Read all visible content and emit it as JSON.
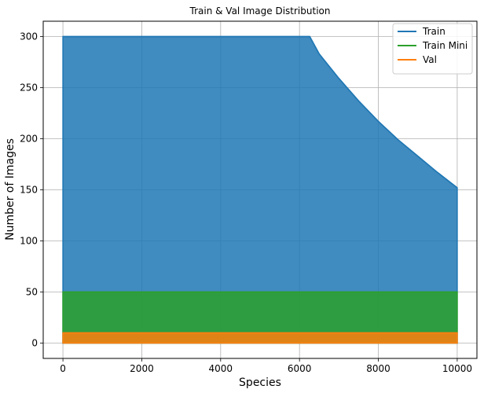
{
  "chart_data": {
    "type": "area",
    "title": "Train & Val Image Distribution",
    "xlabel": "Species",
    "ylabel": "Number of Images",
    "xlim": [
      -500,
      10500
    ],
    "ylim": [
      -15,
      315
    ],
    "xticks": [
      0,
      2000,
      4000,
      6000,
      8000,
      10000
    ],
    "yticks": [
      0,
      50,
      100,
      150,
      200,
      250,
      300
    ],
    "grid": true,
    "legend_position": "top-right",
    "series": [
      {
        "name": "Train",
        "color": "#1f77b4",
        "x": [
          0,
          6200,
          6260,
          6500,
          7000,
          7500,
          8000,
          8500,
          9000,
          9500,
          10000
        ],
        "y": [
          300,
          300,
          300,
          283,
          259,
          237,
          217,
          199,
          183,
          167,
          152
        ]
      },
      {
        "name": "Train Mini",
        "color": "#2ca02c",
        "x": [
          0,
          10000
        ],
        "y": [
          50,
          50
        ]
      },
      {
        "name": "Val",
        "color": "#ff7f0e",
        "x": [
          0,
          10000
        ],
        "y": [
          10,
          10
        ]
      }
    ]
  }
}
